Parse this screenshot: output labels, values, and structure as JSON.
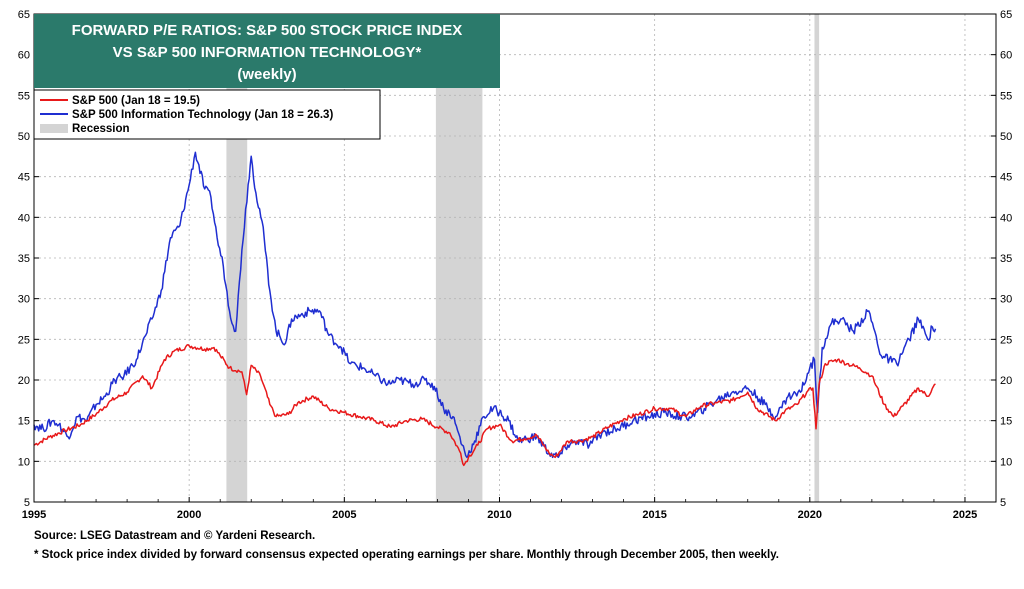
{
  "chart_data": {
    "type": "line",
    "title": "FORWARD P/E RATIOS: S&P 500 STOCK PRICE INDEX VS S&P 500 INFORMATION TECHNOLOGY* (weekly)",
    "title_lines": [
      "FORWARD P/E RATIOS: S&P 500 STOCK PRICE INDEX",
      "VS S&P 500 INFORMATION TECHNOLOGY*",
      "(weekly)"
    ],
    "xlabel": "",
    "ylabel": "",
    "xlim": [
      1995,
      2026
    ],
    "ylim": [
      5,
      65
    ],
    "x_ticks": [
      1995,
      2000,
      2005,
      2010,
      2015,
      2020,
      2025
    ],
    "y_ticks": [
      5,
      10,
      15,
      20,
      25,
      30,
      35,
      40,
      45,
      50,
      55,
      60,
      65
    ],
    "grid": true,
    "legend_position": "top-left",
    "recessions": [
      [
        2001.2,
        2001.87
      ],
      [
        2007.95,
        2009.45
      ],
      [
        2020.15,
        2020.3
      ]
    ],
    "series": [
      {
        "name": "S&P 500 (Jan 18 = 19.5)",
        "color": "#e8191a",
        "points": [
          [
            1995.0,
            12.0
          ],
          [
            1995.5,
            13.0
          ],
          [
            1996.0,
            13.8
          ],
          [
            1996.5,
            14.5
          ],
          [
            1997.0,
            15.8
          ],
          [
            1997.5,
            17.5
          ],
          [
            1998.0,
            18.5
          ],
          [
            1998.5,
            20.5
          ],
          [
            1998.8,
            19.0
          ],
          [
            1999.2,
            22.5
          ],
          [
            1999.5,
            23.5
          ],
          [
            2000.0,
            24.2
          ],
          [
            2000.5,
            23.8
          ],
          [
            2000.8,
            24.0
          ],
          [
            2001.0,
            23.0
          ],
          [
            2001.3,
            21.5
          ],
          [
            2001.7,
            21.0
          ],
          [
            2001.85,
            18.2
          ],
          [
            2002.0,
            21.8
          ],
          [
            2002.3,
            20.5
          ],
          [
            2002.6,
            17.0
          ],
          [
            2002.8,
            15.5
          ],
          [
            2003.2,
            15.8
          ],
          [
            2003.5,
            17.2
          ],
          [
            2004.0,
            18.0
          ],
          [
            2004.5,
            16.5
          ],
          [
            2005.0,
            16.0
          ],
          [
            2005.5,
            15.5
          ],
          [
            2006.0,
            15.0
          ],
          [
            2006.5,
            14.2
          ],
          [
            2007.0,
            15.0
          ],
          [
            2007.5,
            15.2
          ],
          [
            2008.0,
            14.2
          ],
          [
            2008.4,
            13.5
          ],
          [
            2008.75,
            11.0
          ],
          [
            2008.85,
            9.5
          ],
          [
            2009.0,
            10.5
          ],
          [
            2009.3,
            12.0
          ],
          [
            2009.6,
            14.0
          ],
          [
            2010.0,
            14.5
          ],
          [
            2010.4,
            12.5
          ],
          [
            2010.8,
            12.8
          ],
          [
            2011.2,
            13.2
          ],
          [
            2011.6,
            11.0
          ],
          [
            2011.8,
            10.5
          ],
          [
            2012.2,
            12.5
          ],
          [
            2012.6,
            12.5
          ],
          [
            2013.0,
            13.0
          ],
          [
            2013.5,
            14.2
          ],
          [
            2014.0,
            15.2
          ],
          [
            2014.5,
            15.8
          ],
          [
            2015.0,
            16.5
          ],
          [
            2015.5,
            16.5
          ],
          [
            2016.0,
            15.5
          ],
          [
            2016.5,
            16.8
          ],
          [
            2017.0,
            17.2
          ],
          [
            2017.5,
            17.5
          ],
          [
            2018.0,
            18.5
          ],
          [
            2018.3,
            16.5
          ],
          [
            2018.9,
            15.0
          ],
          [
            2019.2,
            16.2
          ],
          [
            2019.6,
            17.0
          ],
          [
            2019.9,
            18.5
          ],
          [
            2020.1,
            19.0
          ],
          [
            2020.2,
            14.0
          ],
          [
            2020.3,
            19.5
          ],
          [
            2020.5,
            22.0
          ],
          [
            2020.9,
            22.5
          ],
          [
            2021.2,
            22.0
          ],
          [
            2021.6,
            21.5
          ],
          [
            2022.0,
            20.5
          ],
          [
            2022.4,
            17.0
          ],
          [
            2022.7,
            15.5
          ],
          [
            2023.0,
            16.8
          ],
          [
            2023.5,
            19.0
          ],
          [
            2023.8,
            18.0
          ],
          [
            2024.05,
            19.5
          ]
        ]
      },
      {
        "name": "S&P 500 Information Technology (Jan 18 = 26.3)",
        "color": "#1f2ed1",
        "points": [
          [
            1995.0,
            14.5
          ],
          [
            1995.3,
            14.0
          ],
          [
            1995.6,
            15.0
          ],
          [
            1995.8,
            14.5
          ],
          [
            1996.1,
            13.0
          ],
          [
            1996.4,
            15.5
          ],
          [
            1996.7,
            15.0
          ],
          [
            1997.0,
            17.0
          ],
          [
            1997.3,
            18.0
          ],
          [
            1997.6,
            20.0
          ],
          [
            1997.9,
            20.5
          ],
          [
            1998.3,
            22.5
          ],
          [
            1998.6,
            25.5
          ],
          [
            1998.8,
            27.5
          ],
          [
            1999.1,
            31.0
          ],
          [
            1999.4,
            37.5
          ],
          [
            1999.7,
            39.0
          ],
          [
            2000.0,
            44.0
          ],
          [
            2000.2,
            48.0
          ],
          [
            2000.5,
            43.5
          ],
          [
            2000.7,
            42.5
          ],
          [
            2000.9,
            37.5
          ],
          [
            2001.1,
            34.0
          ],
          [
            2001.3,
            28.5
          ],
          [
            2001.5,
            26.0
          ],
          [
            2001.7,
            36.0
          ],
          [
            2001.9,
            44.0
          ],
          [
            2002.0,
            47.5
          ],
          [
            2002.15,
            43.0
          ],
          [
            2002.35,
            39.5
          ],
          [
            2002.6,
            31.0
          ],
          [
            2002.8,
            26.0
          ],
          [
            2003.1,
            24.5
          ],
          [
            2003.3,
            27.5
          ],
          [
            2003.6,
            28.0
          ],
          [
            2003.9,
            28.5
          ],
          [
            2004.2,
            28.5
          ],
          [
            2004.5,
            25.5
          ],
          [
            2004.9,
            24.0
          ],
          [
            2005.2,
            22.0
          ],
          [
            2005.6,
            21.5
          ],
          [
            2006.0,
            20.5
          ],
          [
            2006.4,
            19.5
          ],
          [
            2006.8,
            20.0
          ],
          [
            2007.2,
            19.5
          ],
          [
            2007.6,
            20.0
          ],
          [
            2007.9,
            19.2
          ],
          [
            2008.2,
            16.5
          ],
          [
            2008.5,
            15.5
          ],
          [
            2008.8,
            12.0
          ],
          [
            2008.95,
            10.5
          ],
          [
            2009.2,
            12.5
          ],
          [
            2009.5,
            15.5
          ],
          [
            2009.8,
            16.5
          ],
          [
            2010.0,
            16.0
          ],
          [
            2010.3,
            15.0
          ],
          [
            2010.6,
            12.5
          ],
          [
            2010.9,
            12.8
          ],
          [
            2011.2,
            13.0
          ],
          [
            2011.6,
            11.0
          ],
          [
            2011.9,
            10.5
          ],
          [
            2012.2,
            12.0
          ],
          [
            2012.5,
            12.5
          ],
          [
            2012.9,
            12.0
          ],
          [
            2013.3,
            13.5
          ],
          [
            2013.8,
            14.0
          ],
          [
            2014.3,
            15.0
          ],
          [
            2014.8,
            15.5
          ],
          [
            2015.3,
            16.0
          ],
          [
            2015.8,
            15.5
          ],
          [
            2016.2,
            15.5
          ],
          [
            2016.6,
            16.5
          ],
          [
            2017.0,
            17.5
          ],
          [
            2017.5,
            18.5
          ],
          [
            2018.0,
            19.0
          ],
          [
            2018.3,
            18.0
          ],
          [
            2018.9,
            15.5
          ],
          [
            2019.3,
            18.0
          ],
          [
            2019.7,
            18.5
          ],
          [
            2020.0,
            21.5
          ],
          [
            2020.15,
            22.5
          ],
          [
            2020.25,
            16.0
          ],
          [
            2020.4,
            24.0
          ],
          [
            2020.7,
            27.0
          ],
          [
            2021.0,
            27.5
          ],
          [
            2021.4,
            26.0
          ],
          [
            2021.9,
            28.5
          ],
          [
            2022.3,
            23.0
          ],
          [
            2022.8,
            22.0
          ],
          [
            2023.2,
            25.0
          ],
          [
            2023.5,
            27.5
          ],
          [
            2023.8,
            25.0
          ],
          [
            2023.95,
            26.5
          ],
          [
            2024.05,
            26.3
          ]
        ]
      },
      {
        "name": "Recession",
        "color": "#d4d4d4"
      }
    ]
  },
  "footer": {
    "source": "Source: LSEG Datastream and © Yardeni Research.",
    "note": "* Stock price index divided by forward consensus expected operating earnings per share. Monthly through December 2005, then weekly."
  },
  "colors": {
    "title_bg": "#2b7a6b",
    "sp500": "#e8191a",
    "tech": "#1f2ed1",
    "recession": "#d4d4d4"
  }
}
